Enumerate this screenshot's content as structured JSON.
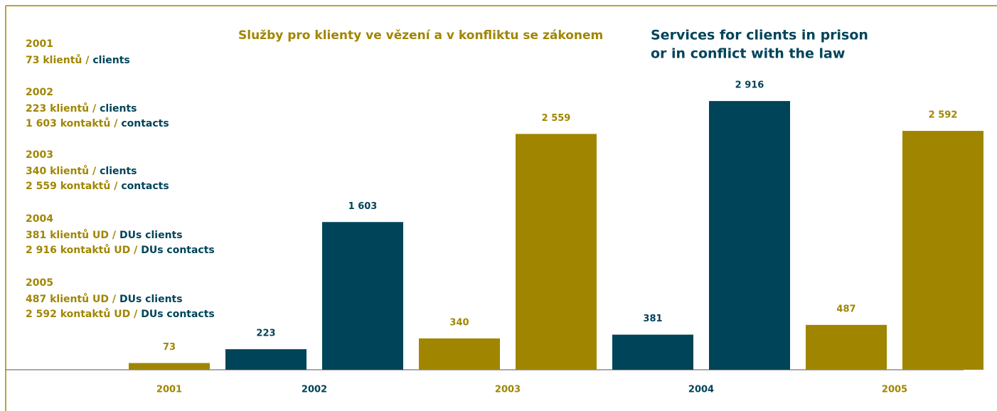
{
  "chart_data": {
    "type": "bar",
    "title": "Služby pro klienty ve vězení a v konfliktu se zákonem",
    "title_en": [
      "Services for clients in prison",
      "or in conflict with the law"
    ],
    "categories": [
      "2001",
      "2002",
      "2003",
      "2004",
      "2005"
    ],
    "colors": [
      "#a08600",
      "#00445a",
      "#a08600",
      "#00445a",
      "#a08600"
    ],
    "series": [
      {
        "values": [
          73,
          223,
          340,
          381,
          487
        ],
        "value_labels": [
          "73",
          "223",
          "340",
          "381",
          "487"
        ]
      },
      {
        "values": [
          null,
          1603,
          2559,
          2916,
          2592
        ],
        "value_labels": [
          null,
          "1 603",
          "2 559",
          "2 916",
          "2 592"
        ]
      }
    ],
    "ylim": [
      0,
      3000
    ],
    "notes": [
      {
        "year": "2001",
        "lines": [
          [
            "73 klientů /",
            "clients"
          ]
        ]
      },
      {
        "year": "2002",
        "lines": [
          [
            "223 klientů /",
            "clients"
          ],
          [
            "1 603 kontaktů /",
            "contacts"
          ]
        ]
      },
      {
        "year": "2003",
        "lines": [
          [
            "340 klientů /",
            "clients"
          ],
          [
            "2 559 kontaktů /",
            "contacts"
          ]
        ]
      },
      {
        "year": "2004",
        "lines": [
          [
            "381 klientů UD /",
            "DUs clients"
          ],
          [
            "2 916 kontaktů UD /",
            "DUs contacts"
          ]
        ]
      },
      {
        "year": "2005",
        "lines": [
          [
            "487 klientů UD /",
            "DUs clients"
          ],
          [
            "2 592 kontaktů UD /",
            "DUs contacts"
          ]
        ]
      }
    ]
  }
}
